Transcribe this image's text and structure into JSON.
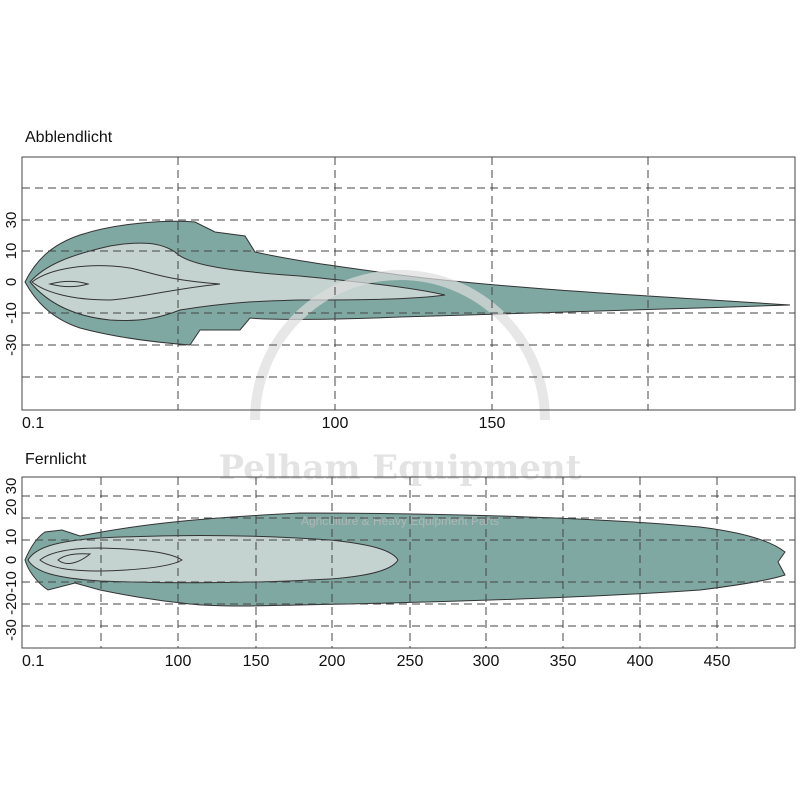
{
  "panels": [
    {
      "title": "Abblendlicht",
      "yticks": [
        "30",
        "10",
        "0",
        "-10",
        "-30"
      ],
      "xticks": [
        "0.1",
        "100",
        "150"
      ]
    },
    {
      "title": "Fernlicht",
      "yticks": [
        "30",
        "20",
        "10",
        "0",
        "-10",
        "-20",
        "-30"
      ],
      "xticks": [
        "0.1",
        "100",
        "150",
        "200",
        "250",
        "300",
        "350",
        "400",
        "450"
      ]
    }
  ],
  "watermark": {
    "name": "Pelham Equipment",
    "tagline": "Agriculture & Heavy Equipment Parts"
  }
}
